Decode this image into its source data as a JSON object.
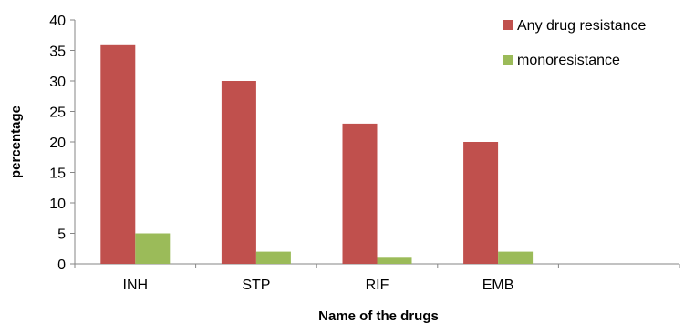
{
  "chart_data": {
    "type": "bar",
    "title": "",
    "xlabel": "Name of the drugs",
    "ylabel": "percentage",
    "categories": [
      "INH",
      "STP",
      "RIF",
      "EMB",
      ""
    ],
    "series": [
      {
        "name": "Any drug resistance",
        "values": [
          36,
          30,
          23,
          20,
          null
        ],
        "color": "#c0504d"
      },
      {
        "name": "monoresistance",
        "values": [
          5,
          2,
          1,
          2,
          null
        ],
        "color": "#9bbb59"
      }
    ],
    "ylim": [
      0,
      40
    ],
    "yticks": [
      0,
      5,
      10,
      15,
      20,
      25,
      30,
      35,
      40
    ],
    "grid": false,
    "legend_position": "top-right"
  }
}
